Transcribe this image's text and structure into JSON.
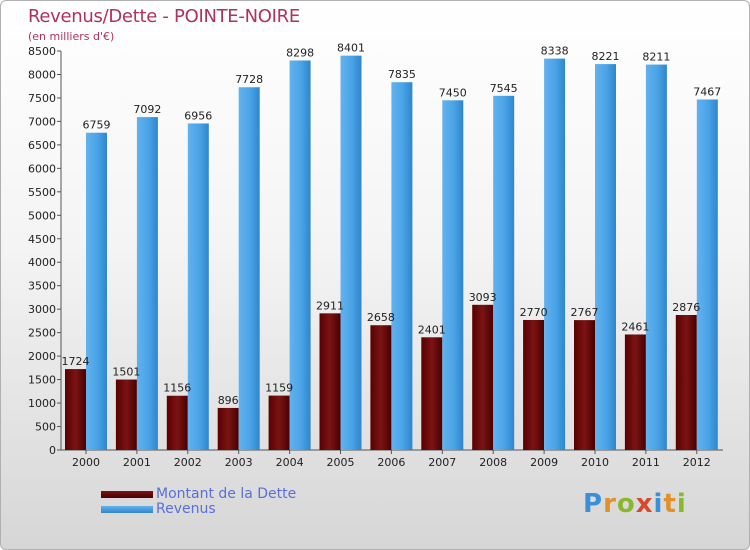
{
  "title": "Revenus/Dette - POINTE-NOIRE",
  "subtitle": "(en milliers d'€)",
  "logo": "Proxiti",
  "colors": {
    "dette": "#6b0a0a",
    "revenus": "#4aa3e6",
    "title": "#b03060",
    "legend_text": "#5a6fd8"
  },
  "legend": {
    "dette_label": "Montant de la Dette",
    "revenus_label": "Revenus"
  },
  "chart_data": {
    "type": "bar",
    "title": "Revenus/Dette - POINTE-NOIRE",
    "subtitle": "(en milliers d'€)",
    "categories": [
      "2000",
      "2001",
      "2002",
      "2003",
      "2004",
      "2005",
      "2006",
      "2007",
      "2008",
      "2009",
      "2010",
      "2011",
      "2012"
    ],
    "series": [
      {
        "name": "Montant de la Dette",
        "values": [
          1724,
          1501,
          1156,
          896,
          1159,
          2911,
          2658,
          2401,
          3093,
          2770,
          2767,
          2461,
          2876
        ],
        "labels": [
          "1724",
          "1501",
          "1156",
          "896",
          "1159",
          "2911",
          "2658",
          "2401",
          "3093",
          "2770",
          "2767",
          "2461",
          "2876"
        ]
      },
      {
        "name": "Revenus",
        "values": [
          6759,
          7092,
          6956,
          7728,
          8298,
          8401,
          7835,
          7450,
          7545,
          8338,
          8221,
          8211,
          7467
        ],
        "labels": [
          "6759",
          "7092",
          "6956",
          "7728",
          "8298",
          "8401",
          "7835",
          "7450",
          "7545",
          "8338",
          "8221",
          "8211",
          "7467"
        ]
      }
    ],
    "yticks": [
      0,
      500,
      1000,
      1500,
      2000,
      2500,
      3000,
      3500,
      4000,
      4500,
      5000,
      5500,
      6000,
      6500,
      7000,
      7500,
      8000,
      8500
    ],
    "ylim": [
      0,
      8500
    ],
    "grid": false,
    "legend_position": "bottom-left"
  }
}
